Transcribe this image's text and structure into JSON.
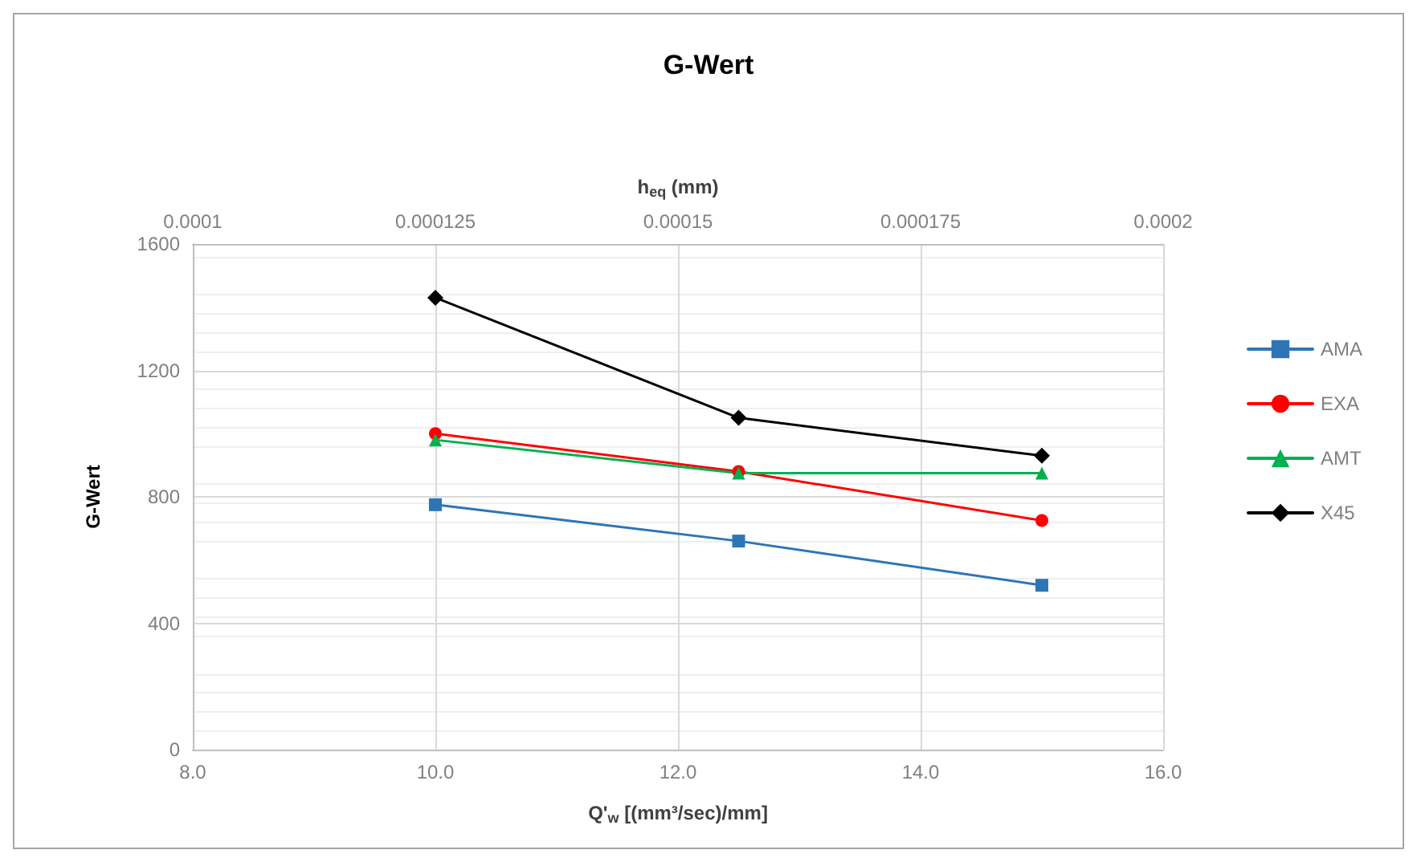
{
  "chart_data": {
    "type": "line",
    "title": "G-Wert",
    "xlabel": "Q'$_{w}$ [(mm³/sec)/mm]",
    "ylabel": "G-Wert",
    "x2label": "h$_{eq}$ (mm)",
    "x": [
      10,
      12.5,
      15
    ],
    "series": [
      {
        "name": "AMA",
        "color": "#2e75b6",
        "marker": "square",
        "values": [
          775,
          660,
          520
        ]
      },
      {
        "name": "EXA",
        "color": "#ff0000",
        "marker": "circle",
        "values": [
          1000,
          880,
          725
        ]
      },
      {
        "name": "AMT",
        "color": "#00b050",
        "marker": "triangle",
        "values": [
          980,
          875,
          875
        ]
      },
      {
        "name": "X45",
        "color": "#000000",
        "marker": "diamond",
        "values": [
          1430,
          1050,
          930
        ]
      }
    ],
    "xlim": [
      8,
      16
    ],
    "xticks": [
      {
        "value": 8,
        "label": "8.0"
      },
      {
        "value": 10,
        "label": "10.0"
      },
      {
        "value": 12,
        "label": "12.0"
      },
      {
        "value": 14,
        "label": "14.0"
      },
      {
        "value": 16,
        "label": "16.0"
      }
    ],
    "x2lim": [
      0.0001,
      0.0002
    ],
    "x2ticks": [
      0.0001,
      0.000125,
      0.00015,
      0.000175,
      0.0002
    ],
    "ylim": [
      0,
      1600
    ],
    "yticks": [
      0,
      400,
      800,
      1200,
      1600
    ],
    "grid": true,
    "legend": "right",
    "line_style": "solid"
  }
}
